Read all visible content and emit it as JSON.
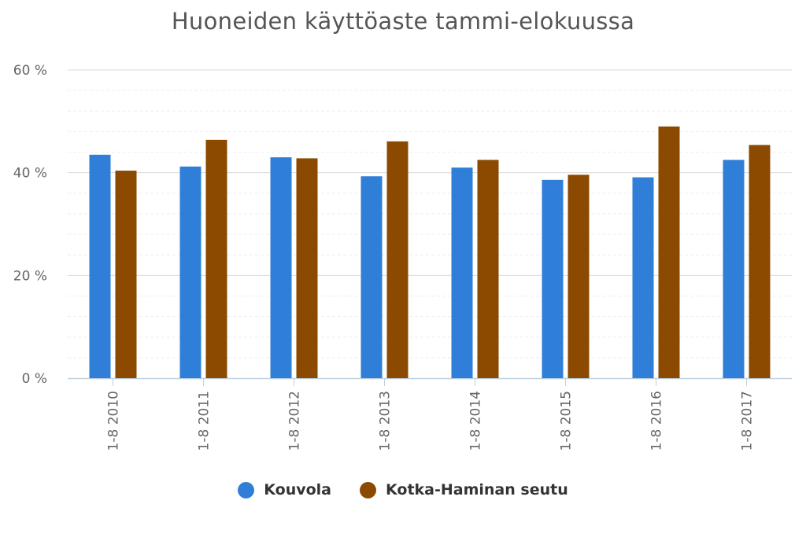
{
  "chart_data": {
    "type": "bar",
    "title": "Huoneiden käyttöaste tammi-elokuussa",
    "categories": [
      "1-8 2010",
      "1-8 2011",
      "1-8 2012",
      "1-8 2013",
      "1-8 2014",
      "1-8 2015",
      "1-8 2016",
      "1-8 2017"
    ],
    "series": [
      {
        "name": "Kouvola",
        "color": "#2f7ed8",
        "values": [
          43.5,
          41.2,
          43.0,
          39.3,
          41.0,
          38.6,
          39.1,
          42.5
        ]
      },
      {
        "name": "Kotka-Haminan seutu",
        "color": "#8b4a00",
        "values": [
          40.4,
          46.4,
          42.8,
          46.1,
          42.5,
          39.6,
          49.0,
          45.4
        ]
      }
    ],
    "ylim": [
      0,
      60
    ],
    "yticks": [
      0,
      20,
      40,
      60
    ],
    "ytick_labels": [
      "0 %",
      "20 %",
      "40 %",
      "60 %"
    ],
    "xlabel": "",
    "ylabel": "",
    "grid": true,
    "legend": "bottom-center"
  }
}
